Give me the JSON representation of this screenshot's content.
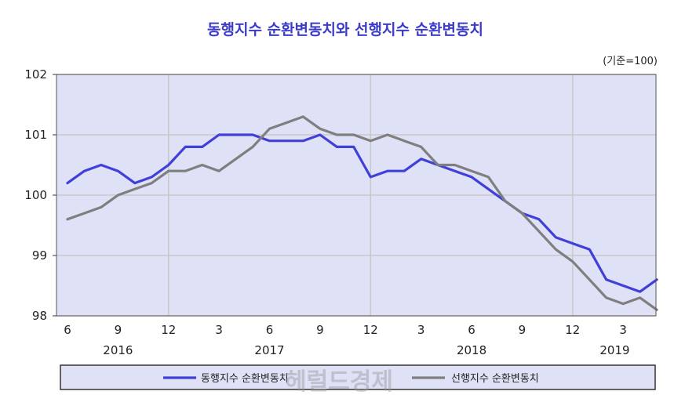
{
  "chart_data": {
    "type": "line",
    "title": "동행지수 순환변동치와 선행지수 순환변동치",
    "unit_note": "(기준=100)",
    "ylim": [
      98,
      102
    ],
    "y_ticks": [
      "98",
      "99",
      "100",
      "101",
      "102"
    ],
    "x_tick_labels": [
      "6",
      "9",
      "12",
      "3",
      "6",
      "9",
      "12",
      "3",
      "6",
      "9",
      "12",
      "3"
    ],
    "x_tick_index": [
      0,
      3,
      6,
      9,
      12,
      15,
      18,
      21,
      24,
      27,
      30,
      33
    ],
    "year_labels": [
      "2016",
      "2017",
      "2018",
      "2019"
    ],
    "year_label_index": [
      3,
      12,
      24,
      32.5
    ],
    "vertical_grid_index": [
      6,
      18,
      30
    ],
    "x": [
      "2016-06",
      "2016-07",
      "2016-08",
      "2016-09",
      "2016-10",
      "2016-11",
      "2016-12",
      "2017-01",
      "2017-02",
      "2017-03",
      "2017-04",
      "2017-05",
      "2017-06",
      "2017-07",
      "2017-08",
      "2017-09",
      "2017-10",
      "2017-11",
      "2017-12",
      "2018-01",
      "2018-02",
      "2018-03",
      "2018-04",
      "2018-05",
      "2018-06",
      "2018-07",
      "2018-08",
      "2018-09",
      "2018-10",
      "2018-11",
      "2018-12",
      "2019-01",
      "2019-02",
      "2019-03",
      "2019-04",
      "2019-05"
    ],
    "series": [
      {
        "name": "동행지수 순환변동치",
        "color": "#4040d8",
        "values": [
          100.2,
          100.4,
          100.5,
          100.4,
          100.2,
          100.3,
          100.5,
          100.8,
          100.8,
          101.0,
          101.0,
          101.0,
          100.9,
          100.9,
          100.9,
          101.0,
          100.8,
          100.8,
          100.3,
          100.4,
          100.4,
          100.6,
          100.5,
          100.4,
          100.3,
          100.1,
          99.9,
          99.7,
          99.6,
          99.3,
          99.2,
          99.1,
          98.6,
          98.5,
          98.4,
          98.6
        ]
      },
      {
        "name": "선행지수 순환변동치",
        "color": "#7f7f7f",
        "values": [
          99.6,
          99.7,
          99.8,
          100.0,
          100.1,
          100.2,
          100.4,
          100.4,
          100.5,
          100.4,
          100.6,
          100.8,
          101.1,
          101.2,
          101.3,
          101.1,
          101.0,
          101.0,
          100.9,
          101.0,
          100.9,
          100.8,
          100.5,
          100.5,
          100.4,
          100.3,
          99.9,
          99.7,
          99.4,
          99.1,
          98.9,
          98.6,
          98.3,
          98.2,
          98.3,
          98.1
        ]
      }
    ],
    "legend_placement": "bottom",
    "grid": true,
    "colors": {
      "plot_background": "#dfe1f7",
      "grid": "#c8c8c8",
      "title": "#3c3cc8",
      "legend_background": "#dfe1f7"
    },
    "watermark": "헤럴드경제"
  }
}
